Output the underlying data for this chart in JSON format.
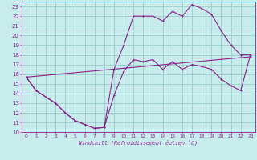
{
  "xlabel": "Windchill (Refroidissement éolien,°C)",
  "bg_color": "#c8ecec",
  "line_color": "#882288",
  "grid_color": "#99cccc",
  "xlim": [
    -0.5,
    23.5
  ],
  "ylim": [
    10,
    23.5
  ],
  "xticks": [
    0,
    1,
    2,
    3,
    4,
    5,
    6,
    7,
    8,
    9,
    10,
    11,
    12,
    13,
    14,
    15,
    16,
    17,
    18,
    19,
    20,
    21,
    22,
    23
  ],
  "yticks": [
    10,
    11,
    12,
    13,
    14,
    15,
    16,
    17,
    18,
    19,
    20,
    21,
    22,
    23
  ],
  "line1_x": [
    0,
    1,
    3,
    4,
    5,
    6,
    7,
    8,
    9,
    10,
    11,
    12,
    13,
    14,
    15,
    16,
    17,
    18,
    19,
    20,
    21,
    22,
    23
  ],
  "line1_y": [
    15.7,
    14.3,
    13.0,
    12.0,
    11.2,
    10.8,
    10.4,
    10.5,
    16.5,
    19.0,
    22.0,
    22.0,
    22.0,
    21.5,
    22.5,
    22.0,
    23.2,
    22.8,
    22.2,
    20.5,
    19.0,
    18.0,
    18.0
  ],
  "line2_x": [
    0,
    1,
    3,
    4,
    5,
    6,
    7,
    8,
    9,
    10,
    11,
    12,
    13,
    14,
    15,
    16,
    17,
    18,
    19,
    20,
    21,
    22,
    23
  ],
  "line2_y": [
    15.7,
    14.3,
    13.0,
    12.0,
    11.2,
    10.8,
    10.4,
    10.5,
    13.8,
    16.3,
    17.5,
    17.3,
    17.5,
    16.5,
    17.3,
    16.5,
    17.0,
    16.8,
    16.5,
    15.5,
    14.8,
    14.3,
    18.0
  ],
  "line3_x": [
    0,
    23
  ],
  "line3_y": [
    15.7,
    17.8
  ]
}
